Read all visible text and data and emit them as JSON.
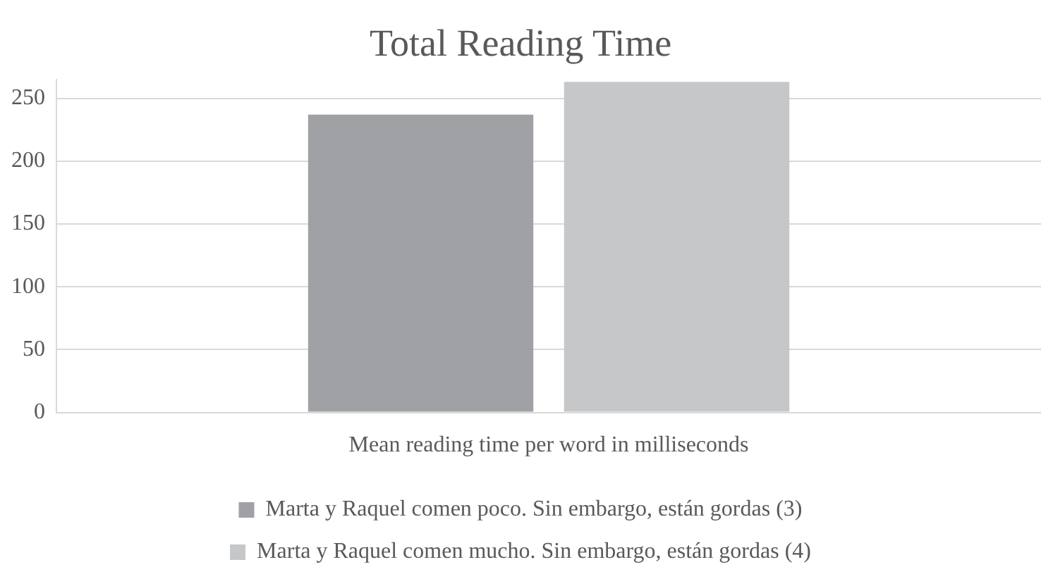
{
  "chart_data": {
    "type": "bar",
    "title": "Total Reading Time",
    "categories": [
      "Mean reading time per word in milliseconds"
    ],
    "series": [
      {
        "name": "Marta y Raquel comen poco. Sin embargo, están gordas (3)",
        "color": "#a0a1a4",
        "values": [
          237
        ]
      },
      {
        "name": "Marta y Raquel comen mucho. Sin embargo, están gordas (4)",
        "color": "#c6c7c9",
        "values": [
          263
        ]
      }
    ],
    "ylim": [
      0,
      265
    ],
    "yticks": [
      0,
      50,
      100,
      150,
      200,
      250
    ],
    "grid": "y",
    "legend": "bottom"
  }
}
